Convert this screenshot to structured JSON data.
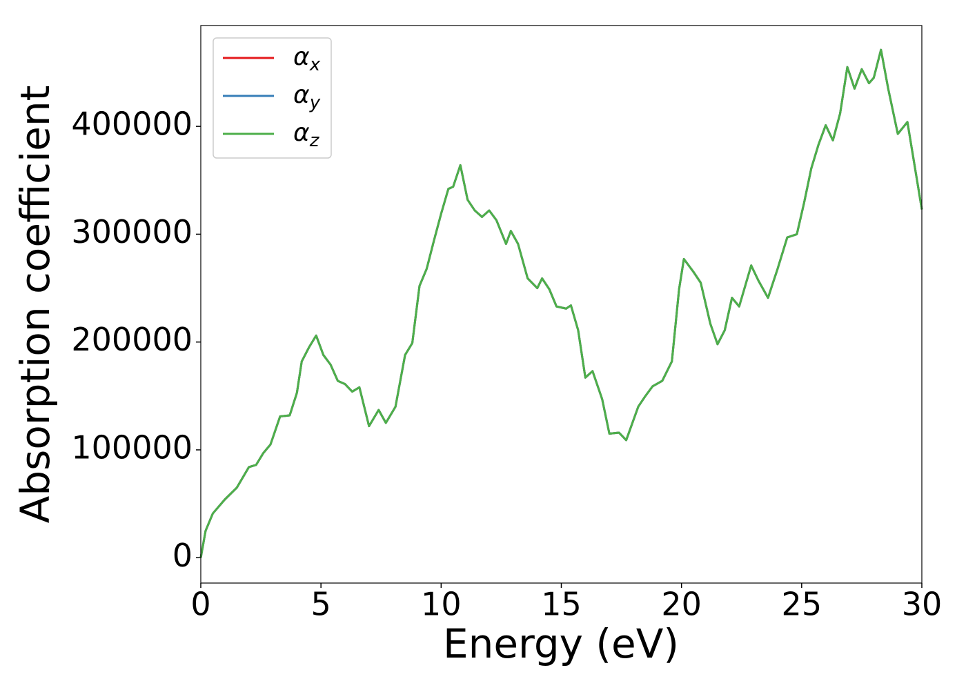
{
  "chart_data": {
    "type": "line",
    "xlabel": "Energy (eV)",
    "ylabel": "Absorption coefficient",
    "x": [
      0,
      0.2,
      0.5,
      1.0,
      1.5,
      2.0,
      2.3,
      2.6,
      2.9,
      3.3,
      3.7,
      4.0,
      4.2,
      4.5,
      4.8,
      5.1,
      5.4,
      5.7,
      6.0,
      6.3,
      6.6,
      7.0,
      7.4,
      7.7,
      8.1,
      8.5,
      8.8,
      9.1,
      9.4,
      9.7,
      10.0,
      10.3,
      10.5,
      10.8,
      11.1,
      11.4,
      11.7,
      12.0,
      12.3,
      12.7,
      12.9,
      13.2,
      13.6,
      14.0,
      14.2,
      14.5,
      14.8,
      15.2,
      15.4,
      15.7,
      16.0,
      16.3,
      16.7,
      17.0,
      17.4,
      17.7,
      18.2,
      18.5,
      18.8,
      19.2,
      19.6,
      19.9,
      20.1,
      20.5,
      20.8,
      21.2,
      21.5,
      21.8,
      22.1,
      22.4,
      22.9,
      23.2,
      23.6,
      24.0,
      24.4,
      24.8,
      25.1,
      25.4,
      25.7,
      26.0,
      26.3,
      26.6,
      26.9,
      27.2,
      27.5,
      27.8,
      28.0,
      28.3,
      28.6,
      29.0,
      29.4,
      30.0
    ],
    "series": [
      {
        "name": "αx",
        "color": "#e41a1c",
        "values": [
          0,
          25000,
          41000,
          54000,
          65000,
          84000,
          86000,
          97000,
          105000,
          131000,
          132000,
          153000,
          182000,
          195000,
          206000,
          188000,
          179000,
          164000,
          161000,
          154000,
          158000,
          122000,
          137000,
          125000,
          140000,
          188000,
          199000,
          252000,
          268000,
          294000,
          319000,
          342000,
          344000,
          364000,
          332000,
          322000,
          316000,
          322000,
          313000,
          291000,
          303000,
          291000,
          259000,
          250000,
          259000,
          249000,
          233000,
          231000,
          234000,
          211000,
          167000,
          173000,
          147000,
          115000,
          116000,
          109000,
          140000,
          150000,
          159000,
          164000,
          182000,
          249000,
          277000,
          265000,
          255000,
          217000,
          198000,
          211000,
          241000,
          233000,
          271000,
          257000,
          241000,
          268000,
          297000,
          300000,
          329000,
          361000,
          383000,
          401000,
          387000,
          412000,
          455000,
          435000,
          453000,
          440000,
          445000,
          471000,
          435000,
          393000,
          404000,
          323000
        ]
      },
      {
        "name": "αy",
        "color": "#377eb8",
        "values": [
          0,
          25000,
          41000,
          54000,
          65000,
          84000,
          86000,
          97000,
          105000,
          131000,
          132000,
          153000,
          182000,
          195000,
          206000,
          188000,
          179000,
          164000,
          161000,
          154000,
          158000,
          122000,
          137000,
          125000,
          140000,
          188000,
          199000,
          252000,
          268000,
          294000,
          319000,
          342000,
          344000,
          364000,
          332000,
          322000,
          316000,
          322000,
          313000,
          291000,
          303000,
          291000,
          259000,
          250000,
          259000,
          249000,
          233000,
          231000,
          234000,
          211000,
          167000,
          173000,
          147000,
          115000,
          116000,
          109000,
          140000,
          150000,
          159000,
          164000,
          182000,
          249000,
          277000,
          265000,
          255000,
          217000,
          198000,
          211000,
          241000,
          233000,
          271000,
          257000,
          241000,
          268000,
          297000,
          300000,
          329000,
          361000,
          383000,
          401000,
          387000,
          412000,
          455000,
          435000,
          453000,
          440000,
          445000,
          471000,
          435000,
          393000,
          404000,
          323000
        ]
      },
      {
        "name": "αz",
        "color": "#4daf4a",
        "values": [
          0,
          25000,
          41000,
          54000,
          65000,
          84000,
          86000,
          97000,
          105000,
          131000,
          132000,
          153000,
          182000,
          195000,
          206000,
          188000,
          179000,
          164000,
          161000,
          154000,
          158000,
          122000,
          137000,
          125000,
          140000,
          188000,
          199000,
          252000,
          268000,
          294000,
          319000,
          342000,
          344000,
          364000,
          332000,
          322000,
          316000,
          322000,
          313000,
          291000,
          303000,
          291000,
          259000,
          250000,
          259000,
          249000,
          233000,
          231000,
          234000,
          211000,
          167000,
          173000,
          147000,
          115000,
          116000,
          109000,
          140000,
          150000,
          159000,
          164000,
          182000,
          249000,
          277000,
          265000,
          255000,
          217000,
          198000,
          211000,
          241000,
          233000,
          271000,
          257000,
          241000,
          268000,
          297000,
          300000,
          329000,
          361000,
          383000,
          401000,
          387000,
          412000,
          455000,
          435000,
          453000,
          440000,
          445000,
          471000,
          435000,
          393000,
          404000,
          323000
        ]
      }
    ],
    "xlim": [
      0,
      30
    ],
    "xticks": [
      0,
      5,
      10,
      15,
      20,
      25,
      30
    ],
    "ylim": [
      -23500,
      493500
    ],
    "yticks": [
      0,
      100000,
      200000,
      300000,
      400000
    ],
    "grid": false,
    "legend": "upper left"
  }
}
